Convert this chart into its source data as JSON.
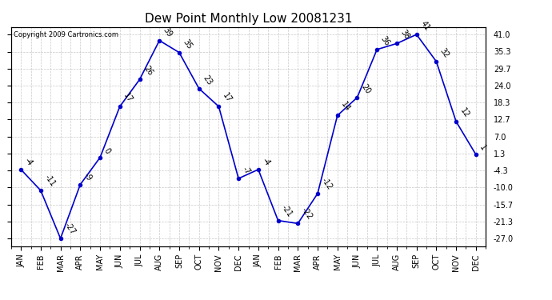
{
  "title": "Dew Point Monthly Low 20081231",
  "copyright": "Copyright 2009 Cartronics.com",
  "x_labels": [
    "JAN",
    "FEB",
    "MAR",
    "APR",
    "MAY",
    "JUN",
    "JUL",
    "AUG",
    "SEP",
    "OCT",
    "NOV",
    "DEC",
    "JAN",
    "FEB",
    "MAR",
    "APR",
    "MAY",
    "JUN",
    "JUL",
    "AUG",
    "SEP",
    "OCT",
    "NOV",
    "DEC"
  ],
  "values": [
    -4,
    -11,
    -27,
    -9,
    0,
    17,
    26,
    39,
    35,
    23,
    17,
    -7,
    -4,
    -21,
    -22,
    -12,
    14,
    20,
    36,
    38,
    41,
    32,
    12,
    1
  ],
  "y_ticks": [
    -27.0,
    -21.3,
    -15.7,
    -10.0,
    -4.3,
    1.3,
    7.0,
    12.7,
    18.3,
    24.0,
    29.7,
    35.3,
    41.0
  ],
  "y_tick_labels": [
    "-27.0",
    "-21.3",
    "-15.7",
    "-10.0",
    "-4.3",
    "1.3",
    "7.0",
    "12.7",
    "18.3",
    "24.0",
    "29.7",
    "35.3",
    "41.0"
  ],
  "ylim": [
    -29.5,
    43.5
  ],
  "line_color": "#0000cc",
  "marker_color": "#0000cc",
  "bg_color": "#ffffff",
  "grid_color": "#bbbbbb",
  "title_fontsize": 11,
  "label_fontsize": 7,
  "annotation_fontsize": 7,
  "copyright_fontsize": 6
}
